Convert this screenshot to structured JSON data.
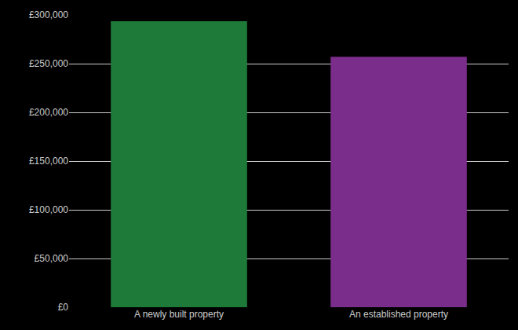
{
  "chart_data": {
    "type": "bar",
    "categories": [
      "A newly built property",
      "An established property"
    ],
    "values": [
      293500,
      257000
    ],
    "colors": [
      "#1e7a38",
      "#7b2d8b"
    ],
    "ylim": [
      0,
      300000
    ],
    "yticks": [
      {
        "value": 0,
        "label": "£0"
      },
      {
        "value": 50000,
        "label": "£50,000"
      },
      {
        "value": 100000,
        "label": "£100,000"
      },
      {
        "value": 150000,
        "label": "£150,000"
      },
      {
        "value": 200000,
        "label": "£200,000"
      },
      {
        "value": 250000,
        "label": "£250,000"
      },
      {
        "value": 300000,
        "label": "£300,000"
      }
    ],
    "grid": true
  }
}
